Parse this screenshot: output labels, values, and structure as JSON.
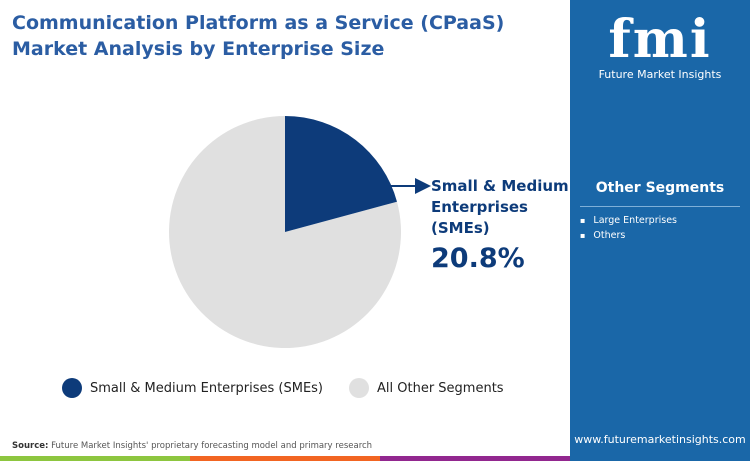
{
  "title_line1": "Communication Platform as a Service (CPaaS)",
  "title_line2": "Market Analysis by Enterprise Size",
  "logo": {
    "mark": "fmi",
    "text": "Future Market Insights"
  },
  "panel": {
    "heading": "Other Segments",
    "items": [
      "Large Enterprises",
      "Others"
    ],
    "url": "www.futuremarketinsights.com"
  },
  "source": {
    "label": "Source:",
    "text": " Future Market Insights' proprietary forecasting model and primary research"
  },
  "callout": {
    "line1": "Small & Medium",
    "line2": "Enterprises",
    "line3": "(SMEs)",
    "value": "20.8%"
  },
  "colors": {
    "sme": "#0d3b7a",
    "other": "#e0e0e0",
    "panel": "#1a67a8",
    "title": "#2b5da3"
  },
  "chart_data": {
    "type": "pie",
    "slices": [
      {
        "name": "Small & Medium Enterprises (SMEs)",
        "value": 20.8,
        "color": "#0d3b7a"
      },
      {
        "name": "All Other Segments",
        "value": 79.2,
        "color": "#e0e0e0"
      }
    ],
    "legend": "bottom"
  }
}
